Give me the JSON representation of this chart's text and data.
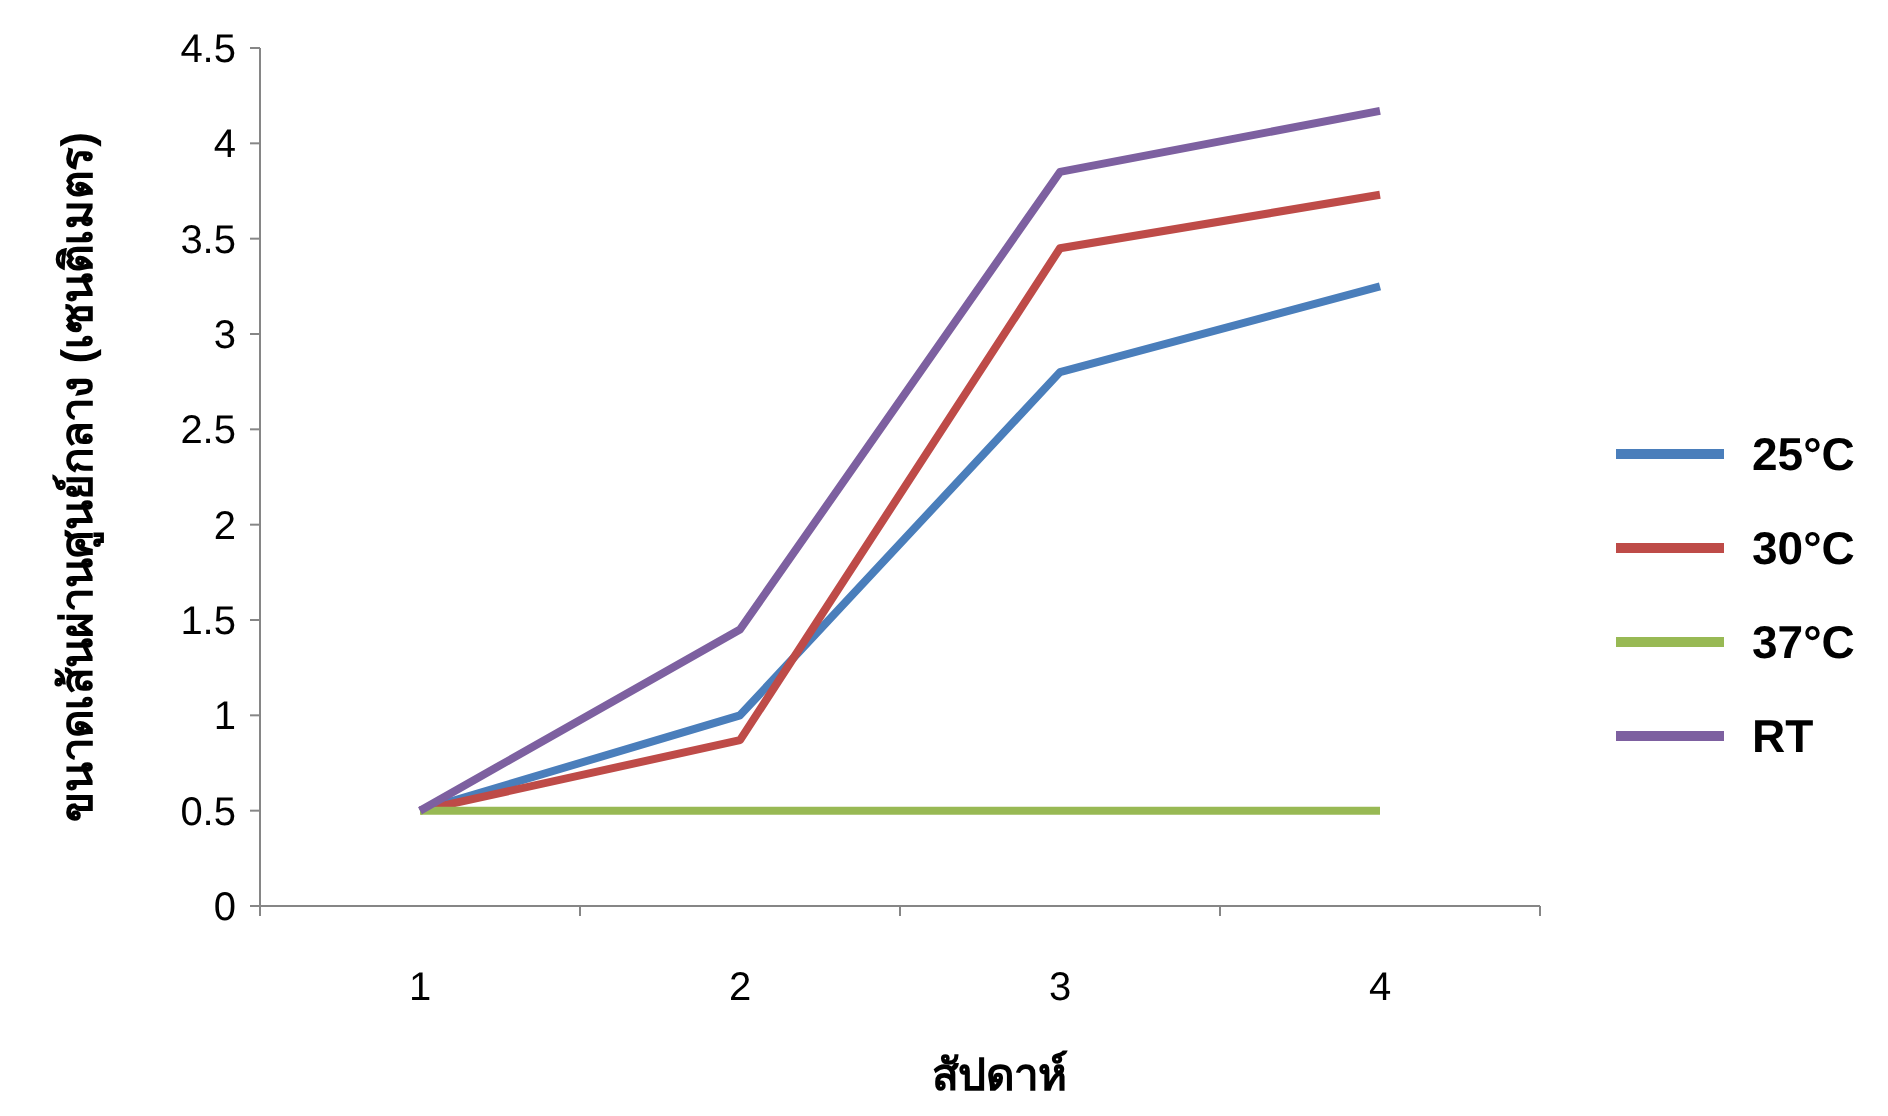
{
  "chart_data": {
    "type": "line",
    "xlabel": "สัปดาห์",
    "ylabel": "ขนาดเส้นผ่านศูนย์กลาง (เซนติเมตร)",
    "categories": [
      "1",
      "2",
      "3",
      "4"
    ],
    "ylim": [
      0,
      4.5
    ],
    "yticks": [
      0,
      0.5,
      1,
      1.5,
      2,
      2.5,
      3,
      3.5,
      4,
      4.5
    ],
    "grid": false,
    "legend": "right",
    "marker": "none",
    "line_style": "solid",
    "series": [
      {
        "name": "25°C",
        "color": "#4a7ebb",
        "values": [
          0.5,
          1.0,
          2.8,
          3.25
        ]
      },
      {
        "name": "30°C",
        "color": "#be4b48",
        "values": [
          0.5,
          0.87,
          3.45,
          3.73
        ]
      },
      {
        "name": "37°C",
        "color": "#98b954",
        "values": [
          0.5,
          0.5,
          0.5,
          0.5
        ]
      },
      {
        "name": "RT",
        "color": "#7d60a0",
        "values": [
          0.5,
          1.45,
          3.85,
          4.17
        ]
      }
    ]
  }
}
